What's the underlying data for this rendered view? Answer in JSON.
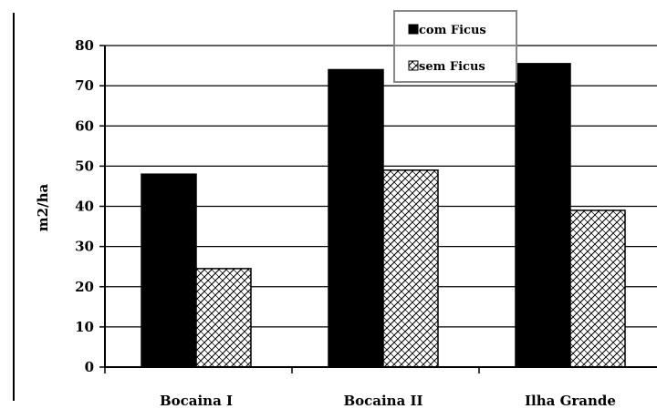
{
  "chart_data": {
    "type": "bar",
    "categories": [
      "Bocaina I",
      "Bocaina II",
      "Ilha Grande"
    ],
    "series": [
      {
        "name": "com Ficus",
        "values": [
          48,
          74,
          75.5
        ],
        "color": "#000000",
        "pattern": "solid"
      },
      {
        "name": "sem Ficus",
        "values": [
          24.5,
          49,
          39
        ],
        "color": "#ffffff",
        "pattern": "crosshatch"
      }
    ],
    "title": "",
    "xlabel": "",
    "ylabel": "m2/ha",
    "ylim": [
      0,
      80
    ],
    "yticks": [
      0,
      10,
      20,
      30,
      40,
      50,
      60,
      70,
      80
    ],
    "grid": true,
    "legend_position": "top-right"
  }
}
